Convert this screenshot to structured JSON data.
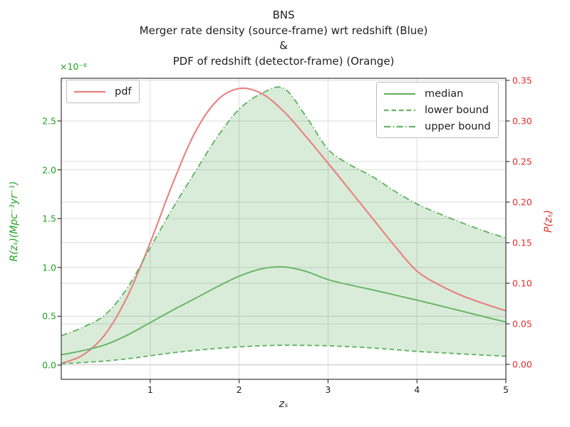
{
  "figure": {
    "title_lines": [
      "BNS",
      "Merger rate density (source-frame) wrt redshift (Blue)",
      "&",
      "PDF of redshift (detector-frame) (Orange)"
    ]
  },
  "axes": {
    "x": {
      "label": "zₛ",
      "tick_labels": [
        "1",
        "2",
        "3",
        "4",
        "5"
      ],
      "tick_values": [
        1,
        2,
        3,
        4,
        5
      ],
      "lim": [
        0,
        5
      ]
    },
    "y_left": {
      "label": "R(zₛ)(Mpc⁻³yr⁻¹)",
      "offset_text": "×10⁻⁶",
      "tick_labels": [
        "0.0",
        "0.5",
        "1.0",
        "1.5",
        "2.0",
        "2.5"
      ],
      "tick_values": [
        0,
        0.5,
        1.0,
        1.5,
        2.0,
        2.5
      ],
      "lim": [
        -0.146,
        2.937
      ],
      "color": "#1ba51b"
    },
    "y_right": {
      "label": "P(zₛ)",
      "tick_labels": [
        "0.00",
        "0.05",
        "0.10",
        "0.15",
        "0.20",
        "0.25",
        "0.30",
        "0.35"
      ],
      "tick_values": [
        0,
        0.05,
        0.1,
        0.15,
        0.2,
        0.25,
        0.3,
        0.35
      ],
      "lim": [
        -0.0184,
        0.3526
      ],
      "color": "#e62b2b"
    }
  },
  "legends": {
    "pdf": {
      "entries": [
        {
          "label": "pdf",
          "style": "solid",
          "color": "#e88080"
        }
      ]
    },
    "bounds": {
      "entries": [
        {
          "label": "median",
          "style": "solid",
          "color": "#66b366"
        },
        {
          "label": "lower bound",
          "style": "dashed",
          "color": "#66b366"
        },
        {
          "label": "upper bound",
          "style": "dashdot",
          "color": "#66b366"
        }
      ]
    }
  },
  "chart_data": {
    "type": "line",
    "title": "BNS — Merger rate density (source-frame) wrt redshift & PDF of redshift (detector-frame)",
    "xlabel": "z_s",
    "ylabel_left": "R(z_s) (Mpc^-3 yr^-1), scale x10^-6",
    "ylabel_right": "P(z_s)",
    "xlim": [
      0,
      5
    ],
    "ylim_left_x1e-6": [
      -0.146,
      2.937
    ],
    "ylim_right": [
      -0.0184,
      0.3526
    ],
    "grid": "both-axes",
    "x": [
      0,
      0.25,
      0.5,
      0.75,
      1,
      1.25,
      1.5,
      1.75,
      2,
      2.25,
      2.5,
      2.75,
      3,
      3.25,
      3.5,
      3.75,
      4,
      4.25,
      4.5,
      4.75,
      5
    ],
    "series": [
      {
        "name": "pdf",
        "axis": "right",
        "style": "solid",
        "color": "#e88080",
        "values": [
          0.001,
          0.012,
          0.038,
          0.085,
          0.15,
          0.222,
          0.285,
          0.325,
          0.34,
          0.334,
          0.312,
          0.281,
          0.248,
          0.214,
          0.18,
          0.146,
          0.115,
          0.098,
          0.085,
          0.075,
          0.066
        ]
      },
      {
        "name": "median",
        "axis": "left",
        "style": "solid",
        "color": "#66b366",
        "values": [
          0.105,
          0.15,
          0.21,
          0.31,
          0.435,
          0.56,
          0.68,
          0.8,
          0.91,
          0.985,
          1.005,
          0.96,
          0.875,
          0.82,
          0.77,
          0.718,
          0.665,
          0.61,
          0.553,
          0.497,
          0.44
        ]
      },
      {
        "name": "lower bound",
        "axis": "left",
        "style": "dashed",
        "color": "#66b366",
        "values": [
          0.015,
          0.026,
          0.042,
          0.065,
          0.095,
          0.125,
          0.15,
          0.17,
          0.186,
          0.197,
          0.203,
          0.202,
          0.197,
          0.188,
          0.175,
          0.158,
          0.14,
          0.127,
          0.114,
          0.102,
          0.09
        ]
      },
      {
        "name": "upper bound",
        "axis": "left",
        "style": "dashdot",
        "color": "#66b366",
        "values": [
          0.3,
          0.39,
          0.52,
          0.8,
          1.2,
          1.6,
          1.97,
          2.33,
          2.62,
          2.78,
          2.835,
          2.55,
          2.21,
          2.05,
          1.93,
          1.78,
          1.65,
          1.55,
          1.46,
          1.375,
          1.3
        ]
      }
    ],
    "band_fill": {
      "between": [
        "lower bound",
        "upper bound"
      ],
      "color": "rgba(0,128,0,0.15)"
    }
  }
}
